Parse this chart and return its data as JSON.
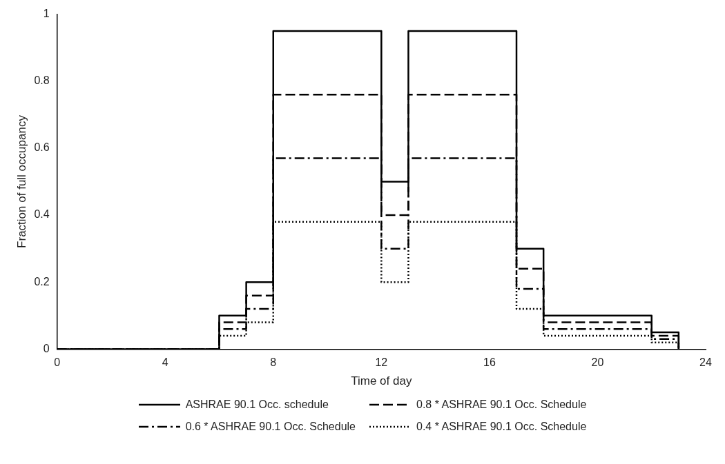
{
  "chart_data": {
    "type": "step",
    "xlabel": "Time of day",
    "ylabel": "Fraction of full occupancy",
    "xlim": [
      0,
      24
    ],
    "xticks": [
      0,
      4,
      8,
      12,
      16,
      20,
      24
    ],
    "ylim": [
      0,
      1
    ],
    "yticks": [
      0,
      0.2,
      0.4,
      0.6,
      0.8,
      1
    ],
    "grid": false,
    "legend": "bottom",
    "marker": "none",
    "x": [
      0,
      6,
      7,
      8,
      12,
      13,
      17,
      18,
      22,
      23
    ],
    "series": [
      {
        "name": "ASHRAE 90.1 Occ. schedule",
        "color": "#000000",
        "line_style": "solid",
        "values": [
          0,
          0.1,
          0.2,
          0.95,
          0.5,
          0.95,
          0.3,
          0.1,
          0.05,
          0
        ]
      },
      {
        "name": "0.8 * ASHRAE 90.1 Occ. Schedule",
        "color": "#000000",
        "line_style": "dashed",
        "values": [
          0,
          0.08,
          0.16,
          0.76,
          0.4,
          0.76,
          0.24,
          0.08,
          0.04,
          0
        ]
      },
      {
        "name": "0.6 * ASHRAE 90.1 Occ. Schedule",
        "color": "#000000",
        "line_style": "dashdot",
        "values": [
          0,
          0.06,
          0.12,
          0.57,
          0.3,
          0.57,
          0.18,
          0.06,
          0.03,
          0
        ]
      },
      {
        "name": "0.4 * ASHRAE 90.1 Occ. Schedule",
        "color": "#000000",
        "line_style": "dotted",
        "values": [
          0,
          0.04,
          0.08,
          0.38,
          0.2,
          0.38,
          0.12,
          0.04,
          0.02,
          0
        ]
      }
    ]
  }
}
